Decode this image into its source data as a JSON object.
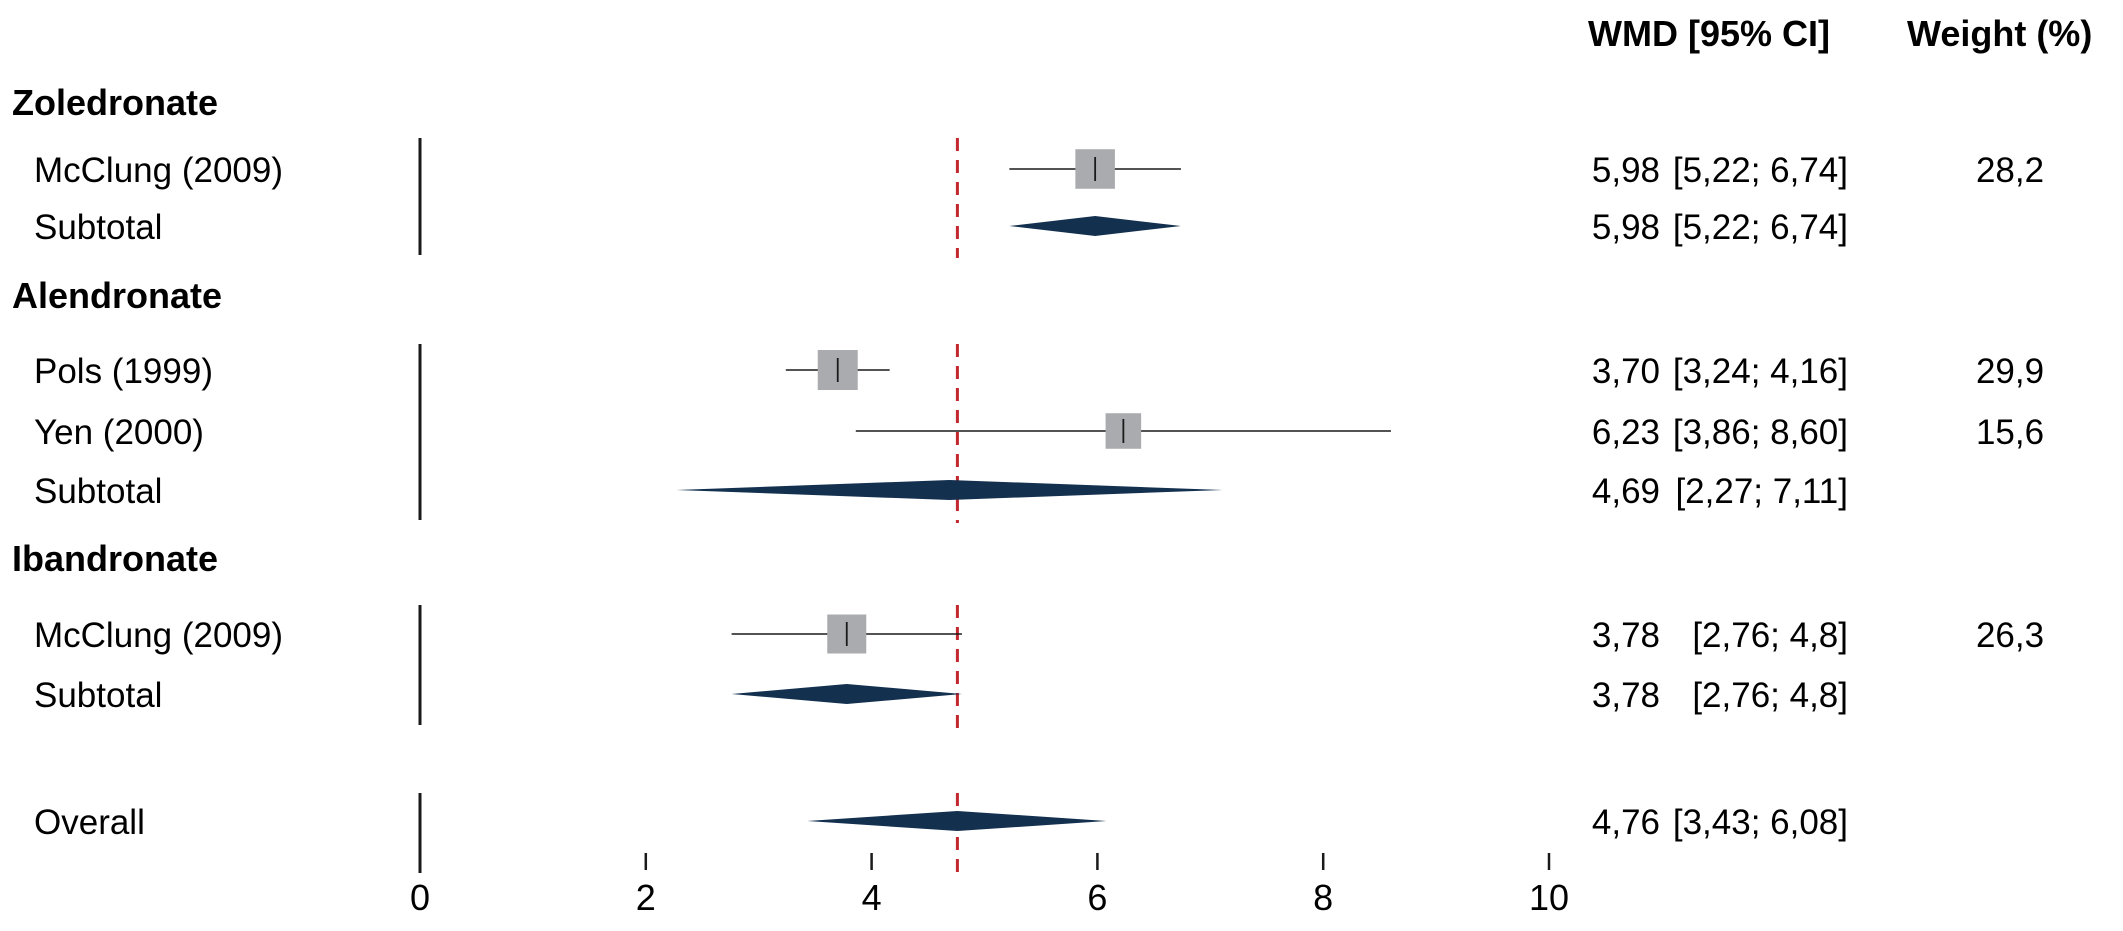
{
  "columns": {
    "effect_header": "WMD [95% CI]",
    "weight_header": "Weight (%)"
  },
  "colors": {
    "square": "#a9abae",
    "diamond": "#13304f",
    "reference_line": "#c1272d",
    "line": "#1a1a1a"
  },
  "chart_data": {
    "type": "forest",
    "xlim": [
      0,
      10
    ],
    "xticks": [
      0,
      2,
      4,
      6,
      8,
      10
    ],
    "reference_value": 4.76,
    "rows": [
      {
        "kind": "group",
        "label": "Zoledronate"
      },
      {
        "kind": "study",
        "label": "McClung (2009)",
        "est": 5.98,
        "lo": 5.22,
        "hi": 6.74,
        "est_text": "5,98",
        "ci_text": "[5,22; 6,74]",
        "weight": 28.2,
        "weight_text": "28,2"
      },
      {
        "kind": "subtotal",
        "label": "Subtotal",
        "est": 5.98,
        "lo": 5.22,
        "hi": 6.74,
        "est_text": "5,98",
        "ci_text": "[5,22; 6,74]"
      },
      {
        "kind": "group",
        "label": "Alendronate"
      },
      {
        "kind": "study",
        "label": "Pols (1999)",
        "est": 3.7,
        "lo": 3.24,
        "hi": 4.16,
        "est_text": "3,70",
        "ci_text": "[3,24; 4,16]",
        "weight": 29.9,
        "weight_text": "29,9"
      },
      {
        "kind": "study",
        "label": "Yen (2000)",
        "est": 6.23,
        "lo": 3.86,
        "hi": 8.6,
        "est_text": "6,23",
        "ci_text": "[3,86; 8,60]",
        "weight": 15.6,
        "weight_text": "15,6"
      },
      {
        "kind": "subtotal",
        "label": "Subtotal",
        "est": 4.69,
        "lo": 2.27,
        "hi": 7.11,
        "est_text": "4,69",
        "ci_text": "[2,27; 7,11]"
      },
      {
        "kind": "group",
        "label": "Ibandronate"
      },
      {
        "kind": "study",
        "label": "McClung (2009)",
        "est": 3.78,
        "lo": 2.76,
        "hi": 4.8,
        "est_text": "3,78",
        "ci_text": "[2,76; 4,8]",
        "weight": 26.3,
        "weight_text": "26,3"
      },
      {
        "kind": "subtotal",
        "label": "Subtotal",
        "est": 3.78,
        "lo": 2.76,
        "hi": 4.8,
        "est_text": "3,78",
        "ci_text": "[2,76; 4,8]"
      },
      {
        "kind": "overall",
        "label": "Overall",
        "est": 4.76,
        "lo": 3.43,
        "hi": 6.08,
        "est_text": "4,76",
        "ci_text": "[3,43; 6,08]"
      }
    ]
  }
}
